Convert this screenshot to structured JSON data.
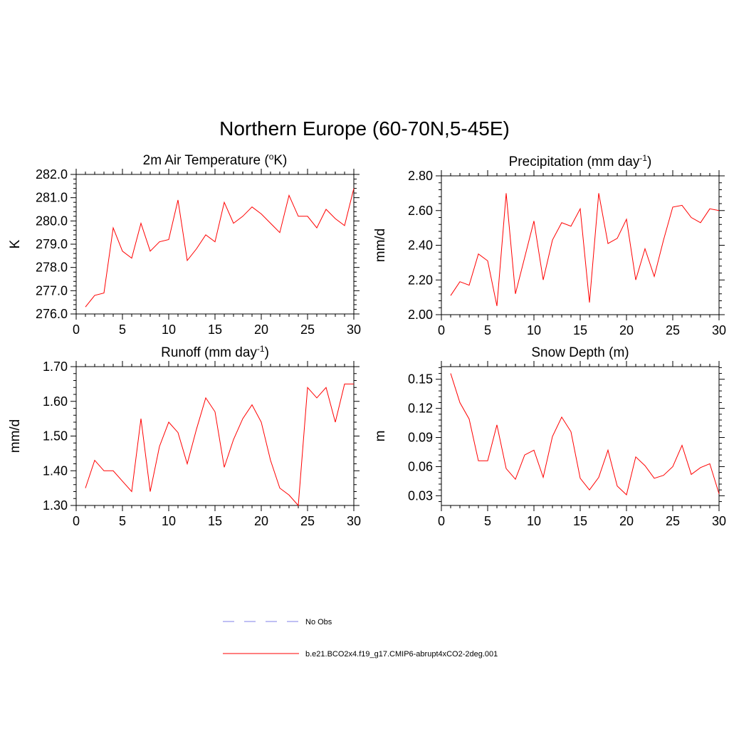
{
  "figure": {
    "title": "Northern Europe (60-70N,5-45E)"
  },
  "legend": {
    "obs_label": "No Obs",
    "obs_color": "#9999ee",
    "model_label": "b.e21.BCO2x4.f19_g17.CMIP6-abrupt4xCO2-2deg.001",
    "model_color": "#ff0000"
  },
  "chart_data": [
    {
      "type": "line",
      "title": "2m Air Temperature (",
      "title_sup": "o",
      "title_end": "K)",
      "xlabel": "",
      "ylabel": "K",
      "xlim": [
        0,
        30
      ],
      "ylim": [
        276.0,
        282.0
      ],
      "xticks": [
        0,
        5,
        10,
        15,
        20,
        25,
        30
      ],
      "yticks": [
        276.0,
        277.0,
        278.0,
        279.0,
        280.0,
        281.0,
        282.0
      ],
      "ytick_labels": [
        "276.0",
        "277.0",
        "278.0",
        "279.0",
        "280.0",
        "281.0",
        "282.0"
      ],
      "grid": false,
      "series": [
        {
          "color": "#ff0000",
          "x": [
            1,
            2,
            3,
            4,
            5,
            6,
            7,
            8,
            9,
            10,
            11,
            12,
            13,
            14,
            15,
            16,
            17,
            18,
            19,
            20,
            21,
            22,
            23,
            24,
            25,
            26,
            27,
            28,
            29,
            30
          ],
          "values": [
            276.3,
            276.8,
            276.9,
            279.7,
            278.7,
            278.4,
            279.9,
            278.7,
            279.1,
            279.2,
            280.9,
            278.3,
            278.8,
            279.4,
            279.1,
            280.8,
            279.9,
            280.2,
            280.6,
            280.3,
            279.9,
            279.5,
            281.1,
            280.2,
            280.2,
            279.7,
            280.5,
            280.1,
            279.8,
            281.4
          ]
        }
      ]
    },
    {
      "type": "line",
      "title": "Precipitation (mm day",
      "title_sup": "-1",
      "title_end": ")",
      "xlabel": "",
      "ylabel": "mm/d",
      "xlim": [
        0,
        30
      ],
      "ylim": [
        2.0,
        2.8
      ],
      "xticks": [
        0,
        5,
        10,
        15,
        20,
        25,
        30
      ],
      "yticks": [
        2.0,
        2.2,
        2.4,
        2.6,
        2.8
      ],
      "ytick_labels": [
        "2.00",
        "2.20",
        "2.40",
        "2.60",
        "2.80"
      ],
      "grid": false,
      "series": [
        {
          "color": "#ff0000",
          "x": [
            1,
            2,
            3,
            4,
            5,
            6,
            7,
            8,
            9,
            10,
            11,
            12,
            13,
            14,
            15,
            16,
            17,
            18,
            19,
            20,
            21,
            22,
            23,
            24,
            25,
            26,
            27,
            28,
            29,
            30
          ],
          "values": [
            2.11,
            2.19,
            2.17,
            2.35,
            2.31,
            2.05,
            2.7,
            2.12,
            2.33,
            2.54,
            2.2,
            2.43,
            2.53,
            2.51,
            2.61,
            2.07,
            2.7,
            2.41,
            2.44,
            2.55,
            2.2,
            2.38,
            2.22,
            2.43,
            2.62,
            2.63,
            2.56,
            2.53,
            2.61,
            2.6
          ]
        }
      ]
    },
    {
      "type": "line",
      "title": "Runoff (mm day",
      "title_sup": "-1",
      "title_end": ")",
      "xlabel": "",
      "ylabel": "mm/d",
      "xlim": [
        0,
        30
      ],
      "ylim": [
        1.3,
        1.7
      ],
      "xticks": [
        0,
        5,
        10,
        15,
        20,
        25,
        30
      ],
      "yticks": [
        1.3,
        1.4,
        1.5,
        1.6,
        1.7
      ],
      "ytick_labels": [
        "1.30",
        "1.40",
        "1.50",
        "1.60",
        "1.70"
      ],
      "grid": false,
      "series": [
        {
          "color": "#ff0000",
          "x": [
            1,
            2,
            3,
            4,
            5,
            6,
            7,
            8,
            9,
            10,
            11,
            12,
            13,
            14,
            15,
            16,
            17,
            18,
            19,
            20,
            21,
            22,
            23,
            24,
            25,
            26,
            27,
            28,
            29,
            30
          ],
          "values": [
            1.35,
            1.43,
            1.4,
            1.4,
            1.37,
            1.34,
            1.55,
            1.34,
            1.47,
            1.54,
            1.51,
            1.42,
            1.52,
            1.61,
            1.57,
            1.41,
            1.49,
            1.55,
            1.59,
            1.54,
            1.43,
            1.35,
            1.33,
            1.3,
            1.64,
            1.61,
            1.64,
            1.54,
            1.65,
            1.65
          ]
        }
      ]
    },
    {
      "type": "line",
      "title": "Snow Depth (m)",
      "title_sup": "",
      "title_end": "",
      "xlabel": "",
      "ylabel": "m",
      "xlim": [
        0,
        30
      ],
      "ylim": [
        0.02,
        0.163
      ],
      "xticks": [
        0,
        5,
        10,
        15,
        20,
        25,
        30
      ],
      "yticks": [
        0.03,
        0.06,
        0.09,
        0.12,
        0.15
      ],
      "ytick_labels": [
        "0.03",
        "0.06",
        "0.09",
        "0.12",
        "0.15"
      ],
      "grid": false,
      "series": [
        {
          "color": "#ff0000",
          "x": [
            1,
            2,
            3,
            4,
            5,
            6,
            7,
            8,
            9,
            10,
            11,
            12,
            13,
            14,
            15,
            16,
            17,
            18,
            19,
            20,
            21,
            22,
            23,
            24,
            25,
            26,
            27,
            28,
            29,
            30
          ],
          "values": [
            0.156,
            0.126,
            0.109,
            0.066,
            0.066,
            0.103,
            0.058,
            0.047,
            0.072,
            0.077,
            0.049,
            0.091,
            0.111,
            0.096,
            0.048,
            0.036,
            0.049,
            0.077,
            0.04,
            0.031,
            0.07,
            0.061,
            0.048,
            0.051,
            0.06,
            0.082,
            0.052,
            0.059,
            0.063,
            0.032
          ]
        }
      ]
    }
  ]
}
